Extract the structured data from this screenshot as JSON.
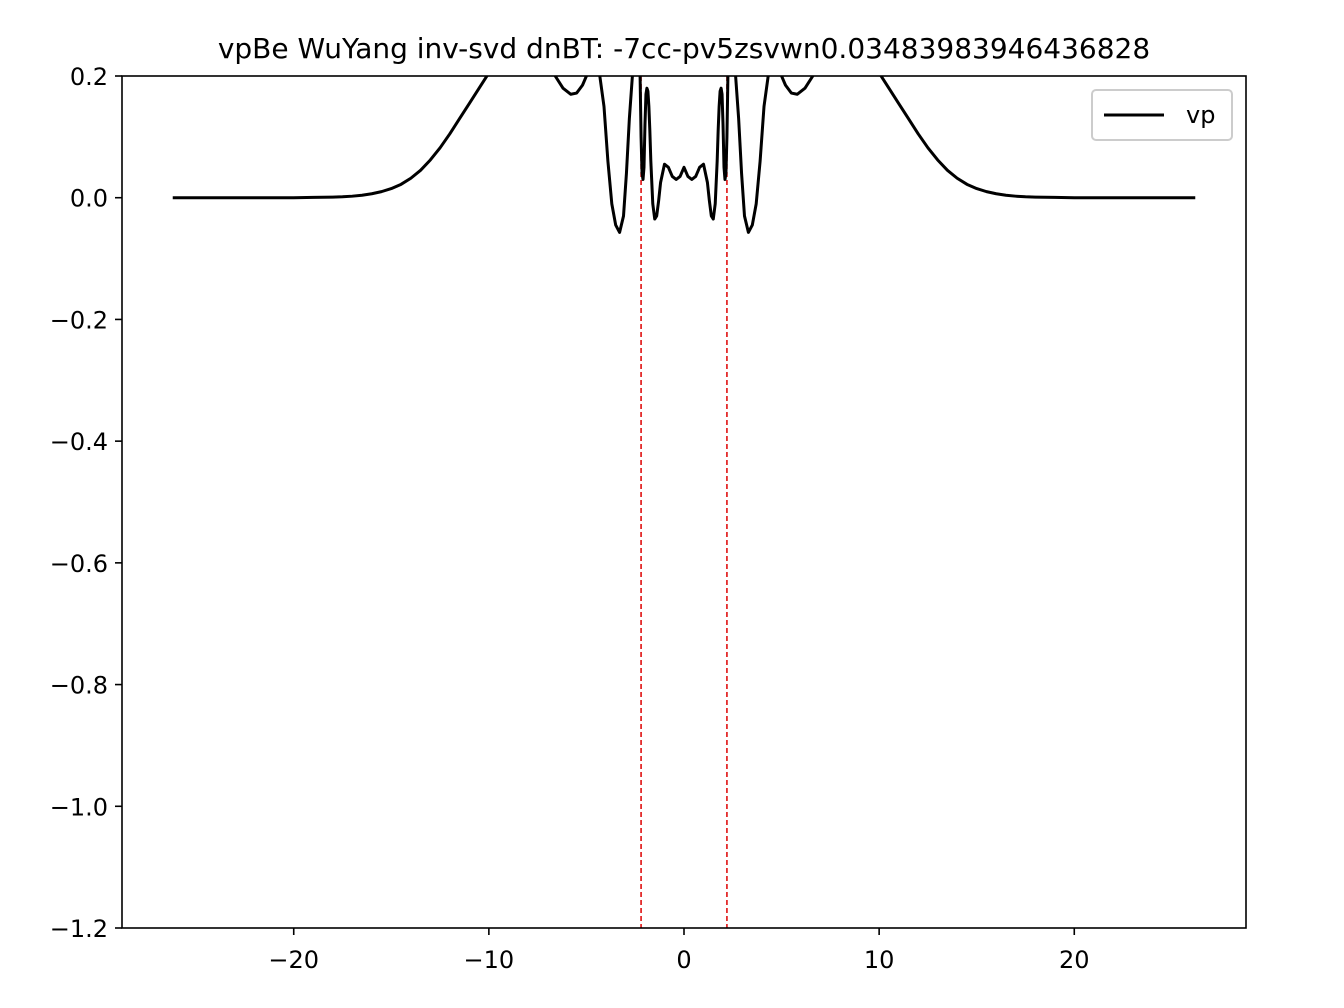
{
  "chart_data": {
    "type": "line",
    "title": "vpBe WuYang inv-svd dnBT: -7cc-pv5zsvwn0.03483983946436828",
    "xlabel": "",
    "ylabel": "",
    "xlim": [
      -28.8,
      28.8
    ],
    "ylim": [
      -1.2,
      0.2
    ],
    "x_ticks": [
      -20,
      -10,
      0,
      10,
      20
    ],
    "x_tick_labels": [
      "−20",
      "−10",
      "0",
      "10",
      "20"
    ],
    "y_ticks": [
      0.2,
      0.0,
      -0.2,
      -0.4,
      -0.6,
      -0.8,
      -1.0,
      -1.2
    ],
    "y_tick_labels": [
      "0.2",
      "0.0",
      "−0.2",
      "−0.4",
      "−0.6",
      "−0.8",
      "−1.0",
      "−1.2"
    ],
    "grid": false,
    "legend_position": "top-right",
    "series": [
      {
        "name": "vp",
        "color": "#000000",
        "style": "solid",
        "x": [
          -26.2,
          -24,
          -22,
          -20,
          -19,
          -18,
          -17.5,
          -17,
          -16.5,
          -16,
          -15.5,
          -15,
          -14.5,
          -14,
          -13.5,
          -13,
          -12.5,
          -12,
          -11.5,
          -11,
          -10.5,
          -10,
          -9.5,
          -9,
          -8,
          -7.2,
          -6.6,
          -6.2,
          -5.8,
          -5.5,
          -5.2,
          -4.8,
          -4.4,
          -4.1,
          -3.9,
          -3.7,
          -3.5,
          -3.3,
          -3.1,
          -2.95,
          -2.8,
          -2.6,
          -2.45,
          -2.35,
          -2.3,
          -2.25,
          -2.2,
          -2.15,
          -2.1,
          -2.05,
          -2.0,
          -1.95,
          -1.9,
          -1.85,
          -1.8,
          -1.75,
          -1.7,
          -1.6,
          -1.5,
          -1.4,
          -1.3,
          -1.2,
          -1.0,
          -0.8,
          -0.6,
          -0.4,
          -0.2,
          0.0,
          0.2,
          0.4,
          0.6,
          0.8,
          1.0,
          1.2,
          1.3,
          1.4,
          1.5,
          1.6,
          1.7,
          1.75,
          1.8,
          1.85,
          1.9,
          1.95,
          2.0,
          2.05,
          2.1,
          2.15,
          2.2,
          2.25,
          2.3,
          2.35,
          2.45,
          2.6,
          2.8,
          2.95,
          3.1,
          3.3,
          3.5,
          3.7,
          3.9,
          4.1,
          4.4,
          4.8,
          5.2,
          5.5,
          5.8,
          6.2,
          6.6,
          7.2,
          8,
          9,
          9.5,
          10,
          10.5,
          11,
          11.5,
          12,
          12.5,
          13,
          13.5,
          14,
          14.5,
          15,
          15.5,
          16,
          16.5,
          17,
          17.5,
          18,
          19,
          20,
          22,
          24,
          26.2
        ],
        "y": [
          0.0,
          0.0,
          0.0,
          0.0,
          0.0005,
          0.001,
          0.0015,
          0.0025,
          0.004,
          0.0065,
          0.01,
          0.015,
          0.022,
          0.032,
          0.045,
          0.062,
          0.082,
          0.105,
          0.13,
          0.155,
          0.18,
          0.205,
          0.23,
          0.26,
          0.29,
          0.26,
          0.2,
          0.18,
          0.17,
          0.172,
          0.185,
          0.215,
          0.22,
          0.15,
          0.06,
          -0.01,
          -0.045,
          -0.057,
          -0.03,
          0.04,
          0.13,
          0.22,
          0.28,
          0.3,
          0.28,
          0.2,
          0.1,
          0.04,
          0.03,
          0.05,
          0.12,
          0.17,
          0.18,
          0.175,
          0.15,
          0.11,
          0.06,
          -0.01,
          -0.035,
          -0.03,
          -0.005,
          0.025,
          0.055,
          0.05,
          0.035,
          0.03,
          0.035,
          0.05,
          0.035,
          0.03,
          0.035,
          0.05,
          0.055,
          0.025,
          -0.005,
          -0.03,
          -0.035,
          -0.01,
          0.06,
          0.11,
          0.15,
          0.175,
          0.18,
          0.17,
          0.12,
          0.05,
          0.03,
          0.04,
          0.1,
          0.2,
          0.28,
          0.3,
          0.28,
          0.22,
          0.13,
          0.04,
          -0.03,
          -0.057,
          -0.045,
          -0.01,
          0.06,
          0.15,
          0.22,
          0.215,
          0.185,
          0.172,
          0.17,
          0.18,
          0.2,
          0.26,
          0.29,
          0.26,
          0.23,
          0.205,
          0.18,
          0.155,
          0.13,
          0.105,
          0.082,
          0.062,
          0.045,
          0.032,
          0.022,
          0.015,
          0.01,
          0.0065,
          0.004,
          0.0025,
          0.0015,
          0.001,
          0.0005,
          0.0,
          0.0,
          0.0,
          0.0
        ]
      }
    ],
    "vlines": [
      {
        "x": -2.2,
        "color": "#dd0000",
        "style": "dashed"
      },
      {
        "x": 2.2,
        "color": "#dd0000",
        "style": "dashed"
      }
    ]
  }
}
